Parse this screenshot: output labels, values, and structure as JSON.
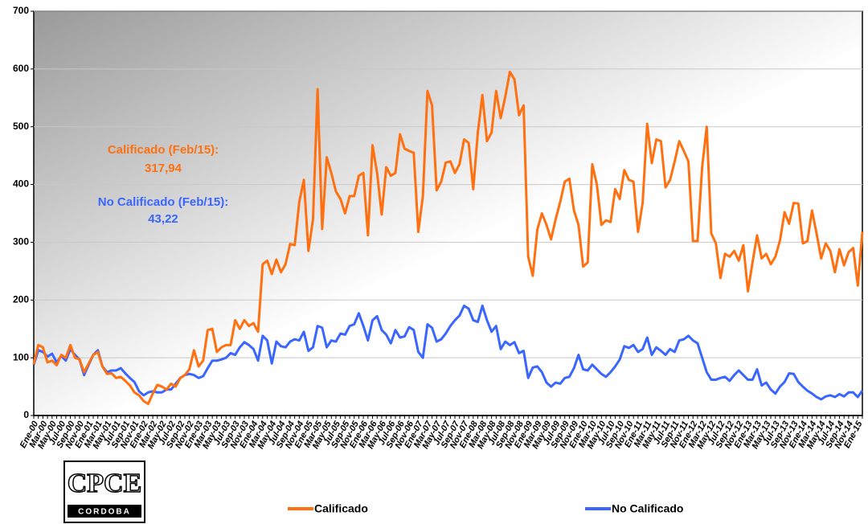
{
  "chart_data": {
    "type": "line",
    "categories": [
      "Ene-00",
      null,
      "Mar-00",
      null,
      "May-00",
      null,
      "Jul-00",
      null,
      "Sep-00",
      null,
      "Nov-00",
      null,
      "Ene-01",
      null,
      "Mar-01",
      null,
      "May-01",
      null,
      "Jul-01",
      null,
      "Sep-01",
      null,
      "Nov-01",
      null,
      "Ene-02",
      null,
      "Mar-02",
      null,
      "May-02",
      null,
      "Jul-02",
      null,
      "Sep-02",
      null,
      "Nov-02",
      null,
      "Ene-03",
      null,
      "Mar-03",
      null,
      "May-03",
      null,
      "Jul-03",
      null,
      "Sep-03",
      null,
      "Nov-03",
      null,
      "Ene-04",
      null,
      "Mar-04",
      null,
      "May-04",
      null,
      "Jul-04",
      null,
      "Sep-04",
      null,
      "Nov-04",
      null,
      "Ene-05",
      null,
      "Mar-05",
      null,
      "May-05",
      null,
      "Jul-05",
      null,
      "Sep-05",
      null,
      "Nov-05",
      null,
      "Ene-06",
      null,
      "Mar-06",
      null,
      "May-06",
      null,
      "Jul-06",
      null,
      "Sep-06",
      null,
      "Nov-06",
      null,
      "Ene-07",
      null,
      "Mar-07",
      null,
      "May-07",
      null,
      "Jul-07",
      null,
      "Sep-07",
      null,
      "Nov-07",
      null,
      "Ene-08",
      null,
      "Mar-08",
      null,
      "May-08",
      null,
      "Jul-08",
      null,
      "Sep-08",
      null,
      "Nov-08",
      null,
      "Ene-09",
      null,
      "Mar-09",
      null,
      "May-09",
      null,
      "Jul-09",
      null,
      "Sep-09",
      null,
      "Nov-09",
      null,
      "Ene-10",
      null,
      "Mar-10",
      null,
      "May-10",
      null,
      "Jul-10",
      null,
      "Sep-10",
      null,
      "Nov-10",
      null,
      "Ene-11",
      null,
      "Mar-11",
      null,
      "May-11",
      null,
      "Jul-11",
      null,
      "Sep-11",
      null,
      "Nov-11",
      null,
      "Ene-12",
      null,
      "Mar-12",
      null,
      "May-12",
      null,
      "Jul-12",
      null,
      "Sep-12",
      null,
      "Nov-12",
      null,
      "Ene-13",
      null,
      "Mar-13",
      null,
      "May-13",
      null,
      "Jul-13",
      null,
      "Sep-13",
      null,
      "Nov-13",
      null,
      "Ene-14",
      null,
      "Mar-14",
      null,
      "May-14",
      null,
      "Jul-14",
      null,
      "Sep-14",
      null,
      "Nov-14",
      null,
      "Ene-15",
      null
    ],
    "series": [
      {
        "name": "Calificado",
        "color": "#ff7010",
        "values": [
          89,
          122,
          118,
          92,
          95,
          87,
          105,
          100,
          122,
          100,
          97,
          75,
          90,
          105,
          110,
          85,
          72,
          73,
          65,
          67,
          60,
          52,
          40,
          35,
          25,
          20,
          38,
          53,
          50,
          45,
          55,
          50,
          65,
          70,
          80,
          113,
          85,
          95,
          148,
          150,
          110,
          118,
          122,
          122,
          165,
          150,
          165,
          155,
          160,
          145,
          262,
          268,
          245,
          270,
          248,
          262,
          297,
          295,
          370,
          408,
          285,
          340,
          565,
          323,
          447,
          420,
          388,
          375,
          350,
          380,
          380,
          415,
          420,
          312,
          468,
          420,
          348,
          430,
          415,
          420,
          487,
          462,
          458,
          455,
          318,
          380,
          562,
          537,
          390,
          405,
          438,
          440,
          420,
          435,
          478,
          472,
          392,
          490,
          555,
          475,
          490,
          562,
          515,
          552,
          595,
          582,
          520,
          537,
          275,
          242,
          322,
          350,
          330,
          305,
          340,
          370,
          405,
          410,
          355,
          330,
          258,
          265,
          435,
          400,
          330,
          338,
          335,
          392,
          375,
          425,
          408,
          405,
          318,
          368,
          505,
          437,
          478,
          475,
          395,
          408,
          440,
          475,
          458,
          440,
          302,
          302,
          430,
          500,
          315,
          298,
          238,
          280,
          275,
          285,
          268,
          295,
          215,
          265,
          312,
          272,
          280,
          262,
          275,
          303,
          352,
          332,
          368,
          367,
          298,
          302,
          355,
          315,
          272,
          298,
          285,
          248,
          288,
          260,
          283,
          290,
          225,
          317.94
        ]
      },
      {
        "name": "No Calificado",
        "color": "#3a66ff",
        "values": [
          88,
          113,
          110,
          102,
          107,
          92,
          103,
          95,
          115,
          105,
          97,
          70,
          88,
          105,
          113,
          85,
          75,
          78,
          78,
          82,
          73,
          65,
          58,
          42,
          35,
          40,
          42,
          40,
          40,
          45,
          45,
          55,
          65,
          70,
          72,
          70,
          65,
          68,
          82,
          95,
          95,
          97,
          100,
          108,
          105,
          118,
          127,
          122,
          115,
          95,
          138,
          130,
          90,
          128,
          120,
          118,
          128,
          132,
          130,
          145,
          112,
          118,
          155,
          152,
          118,
          130,
          128,
          142,
          140,
          155,
          158,
          177,
          155,
          130,
          165,
          172,
          148,
          140,
          125,
          148,
          135,
          137,
          153,
          148,
          110,
          100,
          158,
          152,
          128,
          132,
          142,
          155,
          165,
          173,
          190,
          185,
          165,
          162,
          190,
          165,
          145,
          155,
          115,
          128,
          122,
          127,
          108,
          112,
          65,
          83,
          85,
          75,
          57,
          50,
          57,
          55,
          65,
          67,
          82,
          105,
          80,
          78,
          88,
          80,
          72,
          67,
          75,
          85,
          97,
          120,
          117,
          122,
          110,
          115,
          135,
          105,
          118,
          112,
          105,
          115,
          110,
          130,
          132,
          138,
          130,
          125,
          100,
          75,
          62,
          62,
          65,
          67,
          60,
          70,
          78,
          70,
          62,
          62,
          80,
          52,
          57,
          45,
          38,
          50,
          58,
          73,
          72,
          58,
          50,
          43,
          38,
          32,
          28,
          33,
          35,
          32,
          37,
          33,
          40,
          40,
          32,
          43.22
        ]
      }
    ],
    "ylim": [
      0,
      700
    ],
    "yticks": [
      0,
      100,
      200,
      300,
      400,
      500,
      600,
      700
    ],
    "grid": true,
    "annotations": [
      {
        "text": "Calificado (Feb/15):",
        "value": "317,94",
        "color": "#ff7010"
      },
      {
        "text": "No Calificado (Feb/15):",
        "value": "43,22",
        "color": "#3a66ff"
      }
    ],
    "logo": {
      "title": "CPCE",
      "subtitle": "CORDOBA"
    }
  }
}
